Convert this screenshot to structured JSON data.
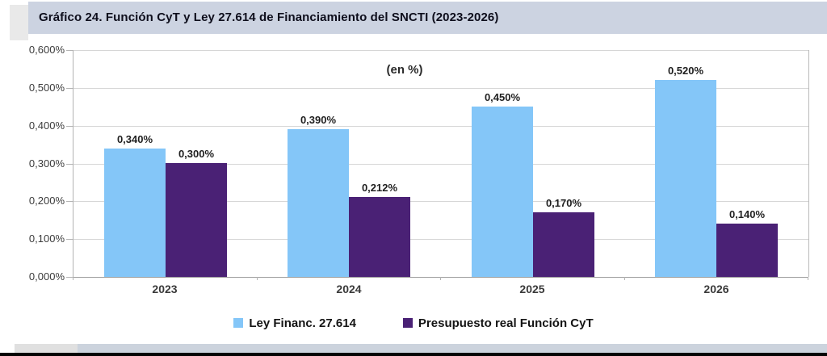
{
  "title": "Gráfico 24. Función CyT y Ley 27.614 de Financiamiento del SNCTI (2023-2026)",
  "chart_data": {
    "type": "bar",
    "title": "Gráfico 24. Función CyT y Ley 27.614 de Financiamiento del SNCTI (2023-2026)",
    "unit_label": "(en %)",
    "categories": [
      "2023",
      "2024",
      "2025",
      "2026"
    ],
    "series": [
      {
        "name": "Ley Financ. 27.614",
        "color": "#84c6f8",
        "values": [
          0.34,
          0.39,
          0.45,
          0.52
        ],
        "labels": [
          "0,340%",
          "0,390%",
          "0,450%",
          "0,520%"
        ]
      },
      {
        "name": "Presupuesto real Función CyT",
        "color": "#4a2175",
        "values": [
          0.3,
          0.212,
          0.17,
          0.14
        ],
        "labels": [
          "0,300%",
          "0,212%",
          "0,170%",
          "0,140%"
        ]
      }
    ],
    "xlabel": "",
    "ylabel": "",
    "ylim": [
      0,
      0.6
    ],
    "y_tick_labels": [
      "0,600%",
      "0,500%",
      "0,400%",
      "0,300%",
      "0,200%",
      "0,100%",
      "0,000%"
    ],
    "grid": true,
    "legend_position": "bottom"
  },
  "colors": {
    "title_band": "#ccd3e1",
    "bottom_band": "#ccd3dd",
    "gridline": "#d6d6d6"
  }
}
